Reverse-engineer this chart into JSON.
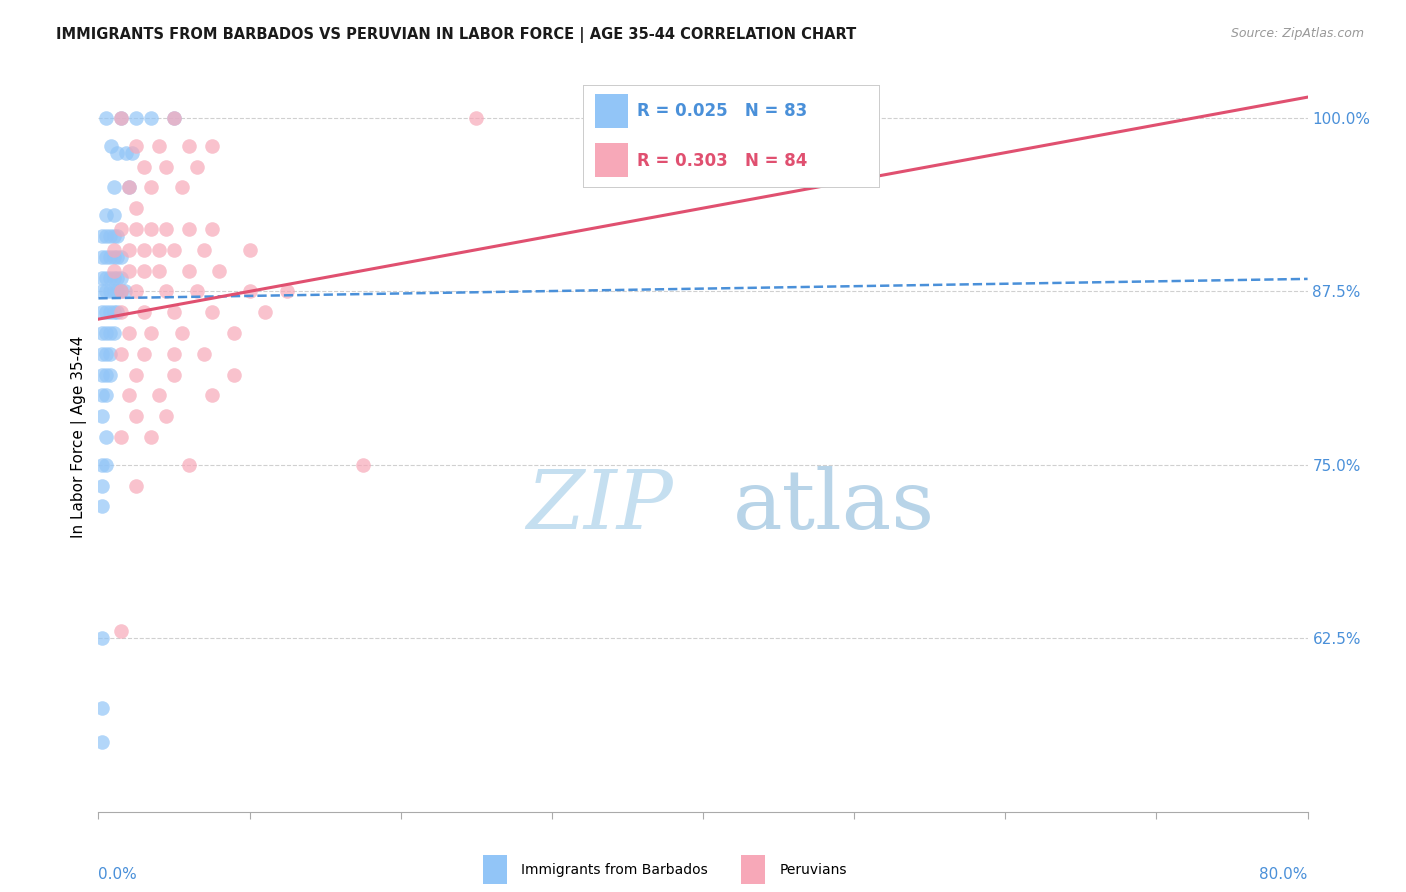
{
  "title": "IMMIGRANTS FROM BARBADOS VS PERUVIAN IN LABOR FORCE | AGE 35-44 CORRELATION CHART",
  "source": "Source: ZipAtlas.com",
  "ylabel": "In Labor Force | Age 35-44",
  "yticks": [
    100.0,
    87.5,
    75.0,
    62.5
  ],
  "ytick_labels": [
    "100.0%",
    "87.5%",
    "75.0%",
    "62.5%"
  ],
  "blue_color": "#92c5f7",
  "pink_color": "#f7a8b8",
  "blue_line_color": "#4a90d9",
  "pink_line_color": "#e05070",
  "axis_label_color": "#4a90d9",
  "watermark_color": "#c8dff5",
  "background": "#ffffff",
  "xlim_left": 0.0,
  "xlim_right": 80.0,
  "ylim_bottom": 50.0,
  "ylim_top": 104.0,
  "blue_scatter_x": [
    0.5,
    1.5,
    2.5,
    3.5,
    5.0,
    0.8,
    1.2,
    1.8,
    2.2,
    1.0,
    2.0,
    0.5,
    1.0,
    0.25,
    0.5,
    0.75,
    1.0,
    1.25,
    0.25,
    0.5,
    0.75,
    1.0,
    1.25,
    1.5,
    0.25,
    0.5,
    0.75,
    1.0,
    1.25,
    1.5,
    0.25,
    0.5,
    0.75,
    1.0,
    1.25,
    1.5,
    1.75,
    0.25,
    0.5,
    0.75,
    1.0,
    1.25,
    0.25,
    0.5,
    0.75,
    1.0,
    0.25,
    0.5,
    0.75,
    0.25,
    0.5,
    0.75,
    0.25,
    0.5,
    0.25,
    0.5,
    0.25,
    0.5,
    0.25,
    0.25,
    0.25,
    0.25,
    0.25
  ],
  "blue_scatter_y": [
    100.0,
    100.0,
    100.0,
    100.0,
    100.0,
    98.0,
    97.5,
    97.5,
    97.5,
    95.0,
    95.0,
    93.0,
    93.0,
    91.5,
    91.5,
    91.5,
    91.5,
    91.5,
    90.0,
    90.0,
    90.0,
    90.0,
    90.0,
    90.0,
    88.5,
    88.5,
    88.5,
    88.5,
    88.5,
    88.5,
    87.5,
    87.5,
    87.5,
    87.5,
    87.5,
    87.5,
    87.5,
    86.0,
    86.0,
    86.0,
    86.0,
    86.0,
    84.5,
    84.5,
    84.5,
    84.5,
    83.0,
    83.0,
    83.0,
    81.5,
    81.5,
    81.5,
    80.0,
    80.0,
    78.5,
    77.0,
    75.0,
    75.0,
    73.5,
    72.0,
    62.5,
    57.5,
    55.0
  ],
  "pink_scatter_x": [
    1.5,
    5.0,
    25.0,
    2.5,
    4.0,
    6.0,
    7.5,
    3.0,
    4.5,
    6.5,
    2.0,
    3.5,
    5.5,
    2.5,
    1.5,
    2.5,
    3.5,
    4.5,
    6.0,
    7.5,
    1.0,
    2.0,
    3.0,
    4.0,
    5.0,
    7.0,
    10.0,
    1.0,
    2.0,
    3.0,
    4.0,
    6.0,
    8.0,
    1.5,
    2.5,
    4.5,
    6.5,
    10.0,
    12.5,
    1.5,
    3.0,
    5.0,
    7.5,
    11.0,
    2.0,
    3.5,
    5.5,
    9.0,
    1.5,
    3.0,
    5.0,
    7.0,
    2.5,
    5.0,
    9.0,
    2.0,
    4.0,
    7.5,
    2.5,
    4.5,
    1.5,
    3.5,
    6.0,
    17.5,
    2.5,
    1.5
  ],
  "pink_scatter_y": [
    100.0,
    100.0,
    100.0,
    98.0,
    98.0,
    98.0,
    98.0,
    96.5,
    96.5,
    96.5,
    95.0,
    95.0,
    95.0,
    93.5,
    92.0,
    92.0,
    92.0,
    92.0,
    92.0,
    92.0,
    90.5,
    90.5,
    90.5,
    90.5,
    90.5,
    90.5,
    90.5,
    89.0,
    89.0,
    89.0,
    89.0,
    89.0,
    89.0,
    87.5,
    87.5,
    87.5,
    87.5,
    87.5,
    87.5,
    86.0,
    86.0,
    86.0,
    86.0,
    86.0,
    84.5,
    84.5,
    84.5,
    84.5,
    83.0,
    83.0,
    83.0,
    83.0,
    81.5,
    81.5,
    81.5,
    80.0,
    80.0,
    80.0,
    78.5,
    78.5,
    77.0,
    77.0,
    75.0,
    75.0,
    73.5,
    63.0
  ],
  "blue_trend_x": [
    0.0,
    80.0
  ],
  "blue_trend_y": [
    87.0,
    88.4
  ],
  "pink_trend_x": [
    0.0,
    80.0
  ],
  "pink_trend_y": [
    85.5,
    101.5
  ]
}
